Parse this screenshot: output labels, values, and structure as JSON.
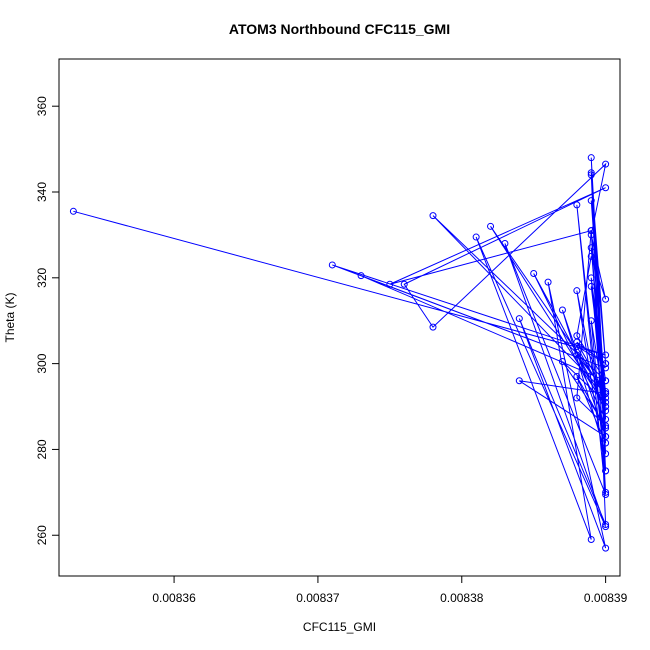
{
  "chart_data": {
    "type": "line",
    "title": "ATOM3 Northbound CFC115_GMI",
    "xlabel": "CFC115_GMI",
    "ylabel": "Theta (K)",
    "xlim": [
      0.008352,
      0.008391
    ],
    "ylim": [
      250.5,
      371
    ],
    "x_ticks": [
      "0.00836",
      "0.00837",
      "0.00838",
      "0.00839"
    ],
    "x_tick_values": [
      0.00836,
      0.00837,
      0.00838,
      0.00839
    ],
    "y_ticks": [
      "260",
      "280",
      "300",
      "320",
      "340",
      "360"
    ],
    "y_tick_values": [
      260,
      280,
      300,
      320,
      340,
      360
    ],
    "grid": false,
    "legend": "none",
    "marker": "open-circle",
    "color": "#0000ff",
    "series": [
      {
        "x": [
          0.008353,
          0.00839,
          0.008371,
          0.00839,
          0.008373,
          0.00839,
          0.008378,
          0.00839,
          0.008382,
          0.00839,
          0.008385,
          0.00839,
          0.008389,
          0.00839,
          0.008388,
          0.00839,
          0.008383,
          0.00839,
          0.008381,
          0.008389,
          0.008386,
          0.00839,
          0.008384,
          0.00839,
          0.008389,
          0.00839,
          0.008387,
          0.00839,
          0.008384,
          0.00839,
          0.008388,
          0.00839,
          0.008389,
          0.00839,
          0.008387,
          0.00839,
          0.008388,
          0.008389,
          0.008375,
          0.00839,
          0.008376,
          0.008378,
          0.00839,
          0.008389,
          0.00839,
          0.008389,
          0.008388,
          0.00839,
          0.008389,
          0.00839,
          0.008389,
          0.00839,
          0.008388,
          0.00839,
          0.008389,
          0.00839,
          0.008388,
          0.00839,
          0.008389,
          0.00839,
          0.008388,
          0.00839,
          0.008389,
          0.00839,
          0.008388,
          0.00839,
          0.008389,
          0.00839
        ],
        "y": [
          335.5,
          302,
          323,
          299,
          320.5,
          296,
          334.5,
          293,
          332,
          290,
          321,
          287,
          348,
          275,
          337,
          269.5,
          328,
          262,
          329.5,
          259,
          319,
          257,
          310.5,
          262.5,
          344.5,
          279,
          312.5,
          283,
          296,
          293,
          305,
          300,
          338,
          291,
          300.5,
          285.5,
          292,
          331,
          318.5,
          341,
          318.5,
          308.5,
          346.5,
          330,
          315,
          325,
          306.5,
          296,
          318,
          290,
          327,
          285,
          297,
          281.5,
          320,
          293.5,
          302,
          289,
          310,
          275,
          317,
          283,
          344,
          300,
          304,
          292,
          331,
          270
        ]
      }
    ]
  }
}
